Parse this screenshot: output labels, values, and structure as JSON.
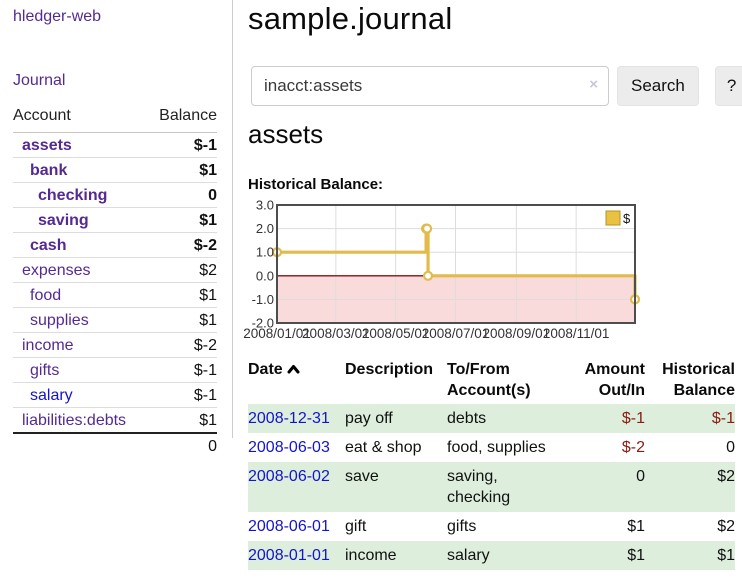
{
  "theme": {
    "accent_purple": "#552a90",
    "link_blue": "#1414cc",
    "neg_strong": "#8b1a10",
    "neg_soft": "#b26262",
    "stripe_green": "#ddeedd",
    "chart_gold": "#e2bb4d",
    "chart_negative_fill": "#fadbdb",
    "chart_zero_line": "#8b1010"
  },
  "app": {
    "brand": "hledger-web",
    "nav_journal": "Journal"
  },
  "sidebar": {
    "header": {
      "account": "Account",
      "balance": "Balance"
    },
    "accounts": [
      {
        "name": "assets",
        "balance": "$-1",
        "depth": 1,
        "bold": true,
        "neg": "strong"
      },
      {
        "name": "bank",
        "balance": "$1",
        "depth": 2,
        "bold": true
      },
      {
        "name": "checking",
        "balance": "0",
        "depth": 3,
        "bold": true
      },
      {
        "name": "saving",
        "balance": "$1",
        "depth": 3,
        "bold": true
      },
      {
        "name": "cash",
        "balance": "$-2",
        "depth": 2,
        "bold": true,
        "neg": "strong"
      },
      {
        "name": "expenses",
        "balance": "$2",
        "depth": 1
      },
      {
        "name": "food",
        "balance": "$1",
        "depth": 2
      },
      {
        "name": "supplies",
        "balance": "$1",
        "depth": 2
      },
      {
        "name": "income",
        "balance": "$-2",
        "depth": 1,
        "neg": "soft"
      },
      {
        "name": "gifts",
        "balance": "$-1",
        "depth": 2,
        "neg": "soft"
      },
      {
        "name": "salary",
        "balance": "$-1",
        "depth": 2,
        "neg": "soft",
        "blue": true
      },
      {
        "name": "liabilities:debts",
        "balance": "$1",
        "depth": 1
      }
    ],
    "total": "0"
  },
  "header": {
    "title": "sample.journal"
  },
  "search": {
    "value": "inacct:assets",
    "clear_icon": "×",
    "button_label": "Search",
    "help_label": "?"
  },
  "account_page": {
    "title": "assets",
    "chart_label": "Historical Balance:"
  },
  "chart_data": {
    "type": "line",
    "step": true,
    "title": "Historical Balance:",
    "series": [
      {
        "name": "$",
        "points": [
          [
            "2008-01-01",
            1
          ],
          [
            "2008-06-01",
            2
          ],
          [
            "2008-06-02",
            2
          ],
          [
            "2008-06-03",
            0
          ],
          [
            "2008-12-31",
            -1
          ]
        ]
      }
    ],
    "x_ticks": [
      "2008/01/01",
      "2008/03/01",
      "2008/05/01",
      "2008/07/01",
      "2008/09/01",
      "2008/11/01"
    ],
    "y_ticks": [
      "3.0",
      "2.0",
      "1.0",
      "0.0",
      "-1.0",
      "-2.0"
    ],
    "ylim": [
      -2,
      3
    ],
    "x_range": [
      "2008-01-01",
      "2008-12-31"
    ],
    "grid": true,
    "legend": {
      "label": "$",
      "position": "top-right"
    },
    "negative_region_shaded": true
  },
  "register": {
    "columns": [
      {
        "label": "Date",
        "sorted": "asc"
      },
      {
        "label": "Description"
      },
      {
        "label": "To/From Account(s)"
      },
      {
        "label": "Amount Out/In",
        "align": "right"
      },
      {
        "label": "Historical Balance",
        "align": "right"
      }
    ],
    "rows": [
      {
        "date": "2008-12-31",
        "description": "pay off",
        "accounts": "debts",
        "amount": "$-1",
        "balance": "$-1",
        "amount_neg": true,
        "balance_neg": true
      },
      {
        "date": "2008-06-03",
        "description": "eat & shop",
        "accounts": "food, supplies",
        "amount": "$-2",
        "balance": "0",
        "amount_neg": true
      },
      {
        "date": "2008-06-02",
        "description": "save",
        "accounts": "saving,\nchecking",
        "amount": "0",
        "balance": "$2"
      },
      {
        "date": "2008-06-01",
        "description": "gift",
        "accounts": "gifts",
        "amount": "$1",
        "balance": "$2"
      },
      {
        "date": "2008-01-01",
        "description": "income",
        "accounts": "salary",
        "amount": "$1",
        "balance": "$1"
      }
    ]
  }
}
